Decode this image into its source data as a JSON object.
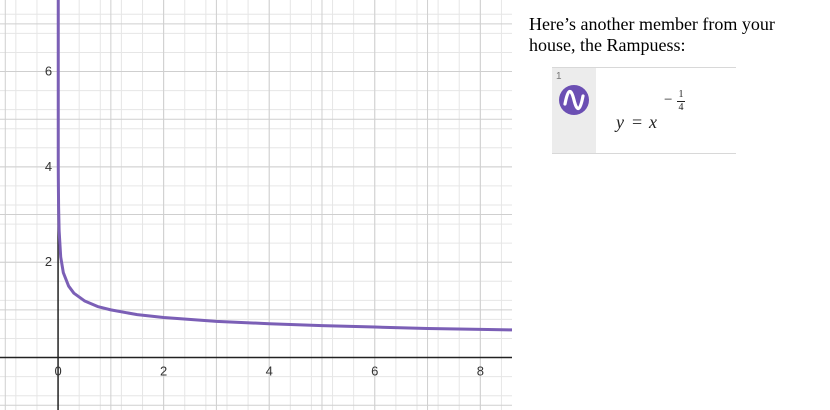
{
  "chart_data": {
    "type": "line",
    "title": "",
    "xlabel": "",
    "ylabel": "",
    "xlim": [
      -1.1,
      8.6
    ],
    "ylim": [
      -1.1,
      7.5
    ],
    "x_ticks": [
      0,
      2,
      4,
      6,
      8
    ],
    "x_tick_labels": [
      "0",
      "2",
      "4",
      "6",
      "8"
    ],
    "y_ticks": [
      2,
      4,
      6
    ],
    "y_tick_labels": [
      "2",
      "4",
      "6"
    ],
    "grid": true,
    "minor_grid_step": 0.4,
    "series": [
      {
        "color": "#7b5fb6",
        "x": [
          0.0035,
          0.005,
          0.01,
          0.02,
          0.05,
          0.1,
          0.2,
          0.3,
          0.5,
          0.75,
          1,
          1.5,
          2,
          3,
          4,
          5,
          6,
          7,
          8,
          8.6
        ],
        "y": [
          4.11,
          3.76,
          3.16,
          2.66,
          2.11,
          1.78,
          1.5,
          1.35,
          1.19,
          1.07,
          1.0,
          0.9,
          0.84,
          0.76,
          0.71,
          0.67,
          0.64,
          0.61,
          0.59,
          0.58
        ]
      }
    ]
  },
  "caption": "Here’s another member from your house, the Rampuess:",
  "expression_panel": {
    "index": "1",
    "icon": "wave-icon",
    "icon_color": "#6b4fb3",
    "equation_lhs": "y",
    "equation_eq": "=",
    "equation_base": "x",
    "exponent_sign": "−",
    "exponent_numerator": "1",
    "exponent_denominator": "4"
  }
}
